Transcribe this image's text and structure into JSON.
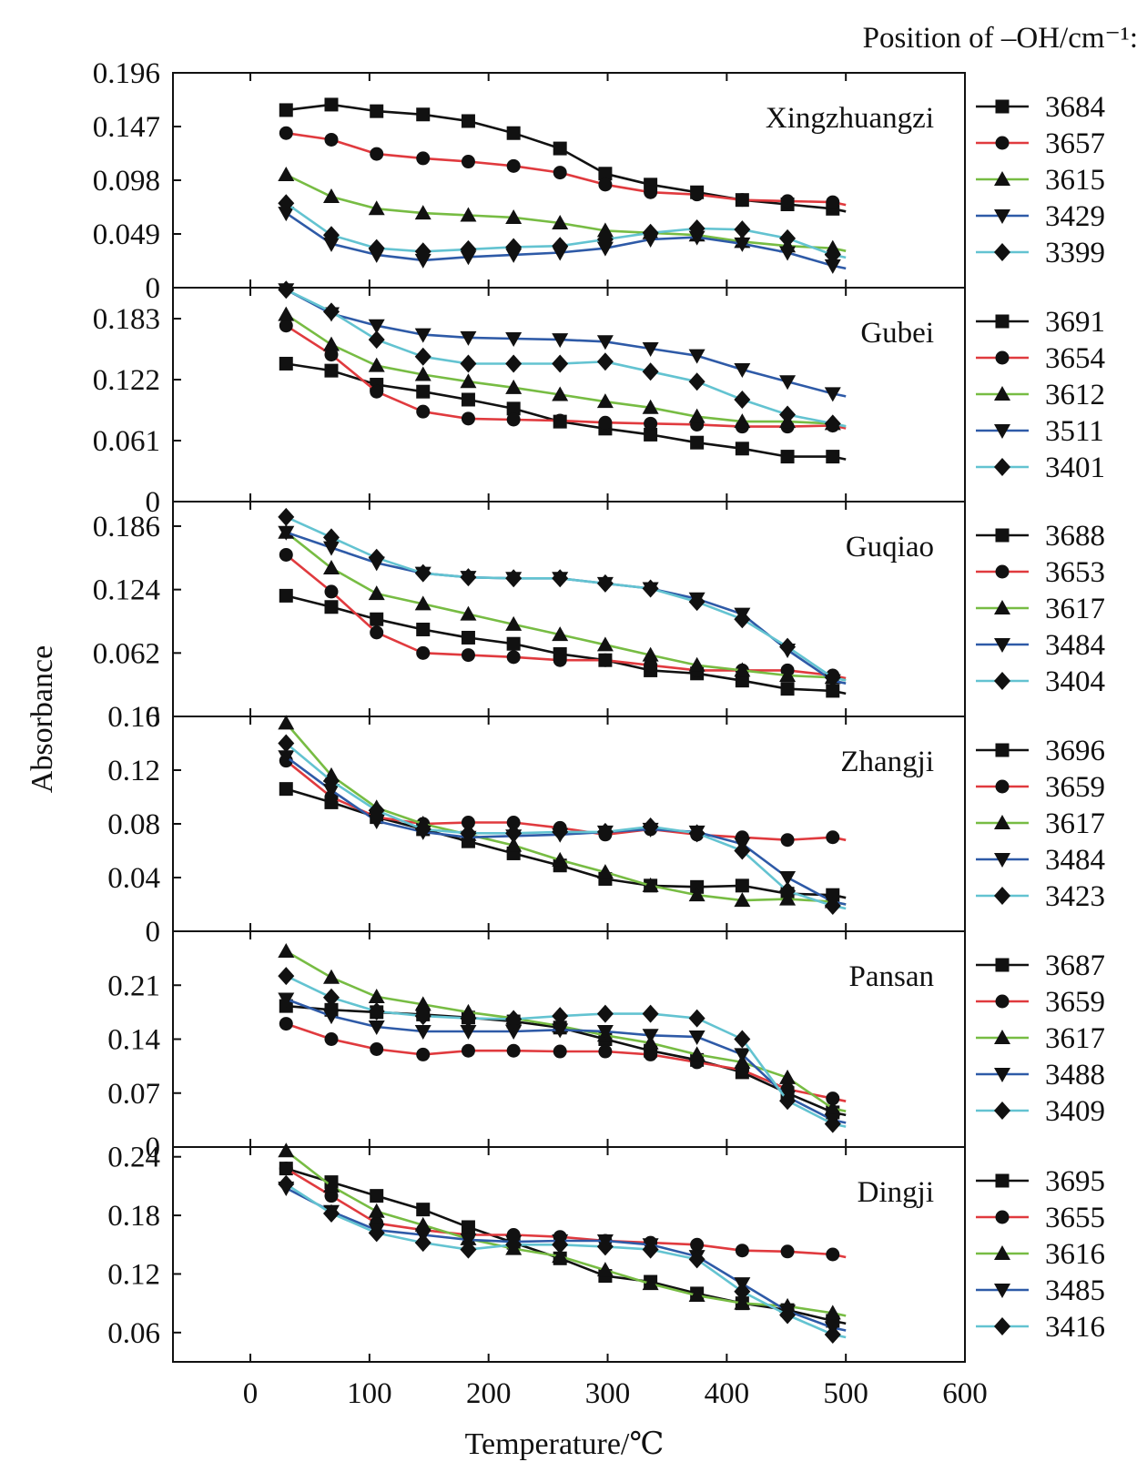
{
  "chart_data": {
    "type": "line",
    "legend_header": "Position of –OH/cm⁻¹:",
    "xlabel": "Temperature/℃",
    "ylabel": "Absorbance",
    "xlim": [
      -65,
      600
    ],
    "x_ticks": [
      0,
      100,
      200,
      300,
      400,
      500,
      600
    ],
    "x_tick_labels": [
      "0",
      "100",
      "200",
      "300",
      "400",
      "500",
      "600"
    ],
    "marker_x": [
      30,
      68,
      106,
      145,
      183,
      221,
      260,
      298,
      336,
      375,
      413,
      451,
      489
    ],
    "colors": {
      "black": "#111111",
      "red": "#e03a3e",
      "green": "#77bc43",
      "blue": "#2e5aa7",
      "cyan": "#63c3d1"
    },
    "legend_placement": "right of each panel",
    "panels": [
      {
        "title": "Xingzhuangzi",
        "ylim": [
          0,
          0.196
        ],
        "y_ticks": [
          0,
          0.049,
          0.098,
          0.147,
          0.196
        ],
        "y_tick_labels": [
          "0",
          "0.049",
          "0.098",
          "0.147",
          "0.196"
        ],
        "series": [
          {
            "name": "3684",
            "color": "#111111",
            "marker": "square",
            "values": [
              0.162,
              0.167,
              0.161,
              0.158,
              0.152,
              0.141,
              0.127,
              0.104,
              0.094,
              0.087,
              0.08,
              0.076,
              0.072
            ]
          },
          {
            "name": "3657",
            "color": "#e03a3e",
            "marker": "circle",
            "values": [
              0.141,
              0.135,
              0.122,
              0.118,
              0.115,
              0.111,
              0.105,
              0.094,
              0.087,
              0.085,
              0.08,
              0.079,
              0.078
            ]
          },
          {
            "name": "3615",
            "color": "#77bc43",
            "marker": "triangle",
            "values": [
              0.103,
              0.083,
              0.072,
              0.068,
              0.066,
              0.064,
              0.059,
              0.052,
              0.05,
              0.048,
              0.042,
              0.038,
              0.036
            ]
          },
          {
            "name": "3429",
            "color": "#2e5aa7",
            "marker": "triangle-down",
            "values": [
              0.068,
              0.04,
              0.03,
              0.025,
              0.028,
              0.03,
              0.032,
              0.036,
              0.044,
              0.046,
              0.04,
              0.032,
              0.02
            ]
          },
          {
            "name": "3399",
            "color": "#63c3d1",
            "marker": "diamond",
            "values": [
              0.077,
              0.048,
              0.036,
              0.033,
              0.035,
              0.037,
              0.038,
              0.044,
              0.05,
              0.054,
              0.053,
              0.045,
              0.03
            ]
          }
        ]
      },
      {
        "title": "Gubei",
        "ylim": [
          0,
          0.214
        ],
        "y_ticks": [
          0,
          0.061,
          0.122,
          0.183
        ],
        "y_tick_labels": [
          "0",
          "0.061",
          "0.122",
          "0.183"
        ],
        "series": [
          {
            "name": "3691",
            "color": "#111111",
            "marker": "square",
            "values": [
              0.138,
              0.131,
              0.117,
              0.11,
              0.102,
              0.093,
              0.08,
              0.073,
              0.067,
              0.059,
              0.053,
              0.045,
              0.045
            ]
          },
          {
            "name": "3654",
            "color": "#e03a3e",
            "marker": "circle",
            "values": [
              0.176,
              0.147,
              0.11,
              0.09,
              0.083,
              0.082,
              0.081,
              0.079,
              0.078,
              0.077,
              0.075,
              0.075,
              0.076
            ]
          },
          {
            "name": "3612",
            "color": "#77bc43",
            "marker": "triangle",
            "values": [
              0.187,
              0.157,
              0.136,
              0.127,
              0.12,
              0.114,
              0.107,
              0.1,
              0.094,
              0.085,
              0.08,
              0.08,
              0.078
            ]
          },
          {
            "name": "3511",
            "color": "#2e5aa7",
            "marker": "triangle-down",
            "values": [
              0.212,
              0.188,
              0.176,
              0.167,
              0.164,
              0.163,
              0.162,
              0.16,
              0.153,
              0.146,
              0.132,
              0.12,
              0.108
            ]
          },
          {
            "name": "3401",
            "color": "#63c3d1",
            "marker": "diamond",
            "values": [
              0.212,
              0.19,
              0.162,
              0.145,
              0.138,
              0.138,
              0.138,
              0.14,
              0.13,
              0.12,
              0.102,
              0.087,
              0.078
            ]
          }
        ]
      },
      {
        "title": "Guqiao",
        "ylim": [
          0,
          0.21
        ],
        "y_ticks": [
          0,
          0.062,
          0.124,
          0.186
        ],
        "y_tick_labels": [
          "0",
          "0.062",
          "0.124",
          "0.186"
        ],
        "series": [
          {
            "name": "3688",
            "color": "#111111",
            "marker": "square",
            "values": [
              0.118,
              0.107,
              0.095,
              0.085,
              0.077,
              0.071,
              0.061,
              0.055,
              0.045,
              0.042,
              0.035,
              0.027,
              0.025
            ]
          },
          {
            "name": "3653",
            "color": "#e03a3e",
            "marker": "circle",
            "values": [
              0.158,
              0.122,
              0.082,
              0.062,
              0.06,
              0.058,
              0.055,
              0.055,
              0.05,
              0.045,
              0.045,
              0.045,
              0.04
            ]
          },
          {
            "name": "3617",
            "color": "#77bc43",
            "marker": "triangle",
            "values": [
              0.18,
              0.145,
              0.12,
              0.11,
              0.1,
              0.09,
              0.08,
              0.07,
              0.06,
              0.05,
              0.045,
              0.04,
              0.038
            ]
          },
          {
            "name": "3484",
            "color": "#2e5aa7",
            "marker": "triangle-down",
            "values": [
              0.18,
              0.165,
              0.15,
              0.14,
              0.136,
              0.135,
              0.135,
              0.13,
              0.125,
              0.115,
              0.1,
              0.065,
              0.035
            ]
          },
          {
            "name": "3404",
            "color": "#63c3d1",
            "marker": "diamond",
            "values": [
              0.195,
              0.175,
              0.155,
              0.14,
              0.136,
              0.135,
              0.135,
              0.13,
              0.125,
              0.112,
              0.095,
              0.068,
              0.038
            ]
          }
        ]
      },
      {
        "title": "Zhangji",
        "ylim": [
          0,
          0.16
        ],
        "y_ticks": [
          0,
          0.04,
          0.08,
          0.12,
          0.16
        ],
        "y_tick_labels": [
          "0",
          "0.04",
          "0.08",
          "0.12",
          "0.16"
        ],
        "series": [
          {
            "name": "3696",
            "color": "#111111",
            "marker": "square",
            "values": [
              0.106,
              0.096,
              0.085,
              0.076,
              0.067,
              0.058,
              0.049,
              0.039,
              0.034,
              0.033,
              0.034,
              0.028,
              0.027
            ]
          },
          {
            "name": "3659",
            "color": "#e03a3e",
            "marker": "circle",
            "values": [
              0.127,
              0.1,
              0.085,
              0.08,
              0.081,
              0.081,
              0.077,
              0.072,
              0.076,
              0.072,
              0.07,
              0.068,
              0.07
            ]
          },
          {
            "name": "3617",
            "color": "#77bc43",
            "marker": "triangle",
            "values": [
              0.155,
              0.116,
              0.092,
              0.08,
              0.072,
              0.064,
              0.053,
              0.044,
              0.034,
              0.027,
              0.023,
              0.024,
              0.022
            ]
          },
          {
            "name": "3484",
            "color": "#2e5aa7",
            "marker": "triangle-down",
            "values": [
              0.13,
              0.105,
              0.082,
              0.074,
              0.07,
              0.071,
              0.072,
              0.074,
              0.076,
              0.074,
              0.065,
              0.04,
              0.022
            ]
          },
          {
            "name": "3423",
            "color": "#63c3d1",
            "marker": "diamond",
            "values": [
              0.14,
              0.112,
              0.09,
              0.076,
              0.073,
              0.073,
              0.074,
              0.074,
              0.078,
              0.073,
              0.06,
              0.03,
              0.019
            ]
          }
        ]
      },
      {
        "title": "Pansan",
        "ylim": [
          0,
          0.28
        ],
        "y_ticks": [
          0,
          0.07,
          0.14,
          0.21
        ],
        "y_tick_labels": [
          "0",
          "0.07",
          "0.14",
          "0.21"
        ],
        "series": [
          {
            "name": "3687",
            "color": "#111111",
            "marker": "square",
            "values": [
              0.183,
              0.178,
              0.175,
              0.172,
              0.168,
              0.163,
              0.155,
              0.14,
              0.125,
              0.113,
              0.097,
              0.07,
              0.045
            ]
          },
          {
            "name": "3659",
            "color": "#e03a3e",
            "marker": "circle",
            "values": [
              0.16,
              0.14,
              0.127,
              0.12,
              0.125,
              0.125,
              0.124,
              0.124,
              0.12,
              0.11,
              0.1,
              0.075,
              0.063
            ]
          },
          {
            "name": "3617",
            "color": "#77bc43",
            "marker": "triangle",
            "values": [
              0.254,
              0.22,
              0.195,
              0.185,
              0.175,
              0.167,
              0.157,
              0.145,
              0.135,
              0.12,
              0.11,
              0.09,
              0.05
            ]
          },
          {
            "name": "3488",
            "color": "#2e5aa7",
            "marker": "triangle-down",
            "values": [
              0.192,
              0.17,
              0.156,
              0.15,
              0.15,
              0.15,
              0.152,
              0.15,
              0.145,
              0.143,
              0.12,
              0.065,
              0.035
            ]
          },
          {
            "name": "3409",
            "color": "#63c3d1",
            "marker": "diamond",
            "values": [
              0.222,
              0.194,
              0.176,
              0.17,
              0.167,
              0.166,
              0.17,
              0.173,
              0.173,
              0.167,
              0.14,
              0.06,
              0.03
            ]
          }
        ]
      },
      {
        "title": "Dingji",
        "ylim": [
          0.03,
          0.25
        ],
        "y_ticks": [
          0.06,
          0.12,
          0.18,
          0.24
        ],
        "y_tick_labels": [
          "0.06",
          "0.12",
          "0.18",
          "0.24"
        ],
        "series": [
          {
            "name": "3695",
            "color": "#111111",
            "marker": "square",
            "values": [
              0.228,
              0.214,
              0.2,
              0.186,
              0.168,
              0.152,
              0.136,
              0.118,
              0.112,
              0.1,
              0.09,
              0.083,
              0.072
            ]
          },
          {
            "name": "3655",
            "color": "#e03a3e",
            "marker": "circle",
            "values": [
              0.228,
              0.2,
              0.172,
              0.165,
              0.16,
              0.16,
              0.158,
              0.154,
              0.152,
              0.15,
              0.144,
              0.143,
              0.14
            ]
          },
          {
            "name": "3616",
            "color": "#77bc43",
            "marker": "triangle",
            "values": [
              0.246,
              0.21,
              0.184,
              0.17,
              0.156,
              0.146,
              0.138,
              0.124,
              0.11,
              0.098,
              0.09,
              0.087,
              0.08
            ]
          },
          {
            "name": "3485",
            "color": "#2e5aa7",
            "marker": "triangle-down",
            "values": [
              0.208,
              0.184,
              0.165,
              0.16,
              0.155,
              0.153,
              0.154,
              0.154,
              0.15,
              0.138,
              0.11,
              0.082,
              0.065
            ]
          },
          {
            "name": "3416",
            "color": "#63c3d1",
            "marker": "diamond",
            "values": [
              0.212,
              0.182,
              0.162,
              0.152,
              0.145,
              0.15,
              0.15,
              0.148,
              0.145,
              0.135,
              0.102,
              0.078,
              0.058
            ]
          }
        ]
      }
    ]
  }
}
